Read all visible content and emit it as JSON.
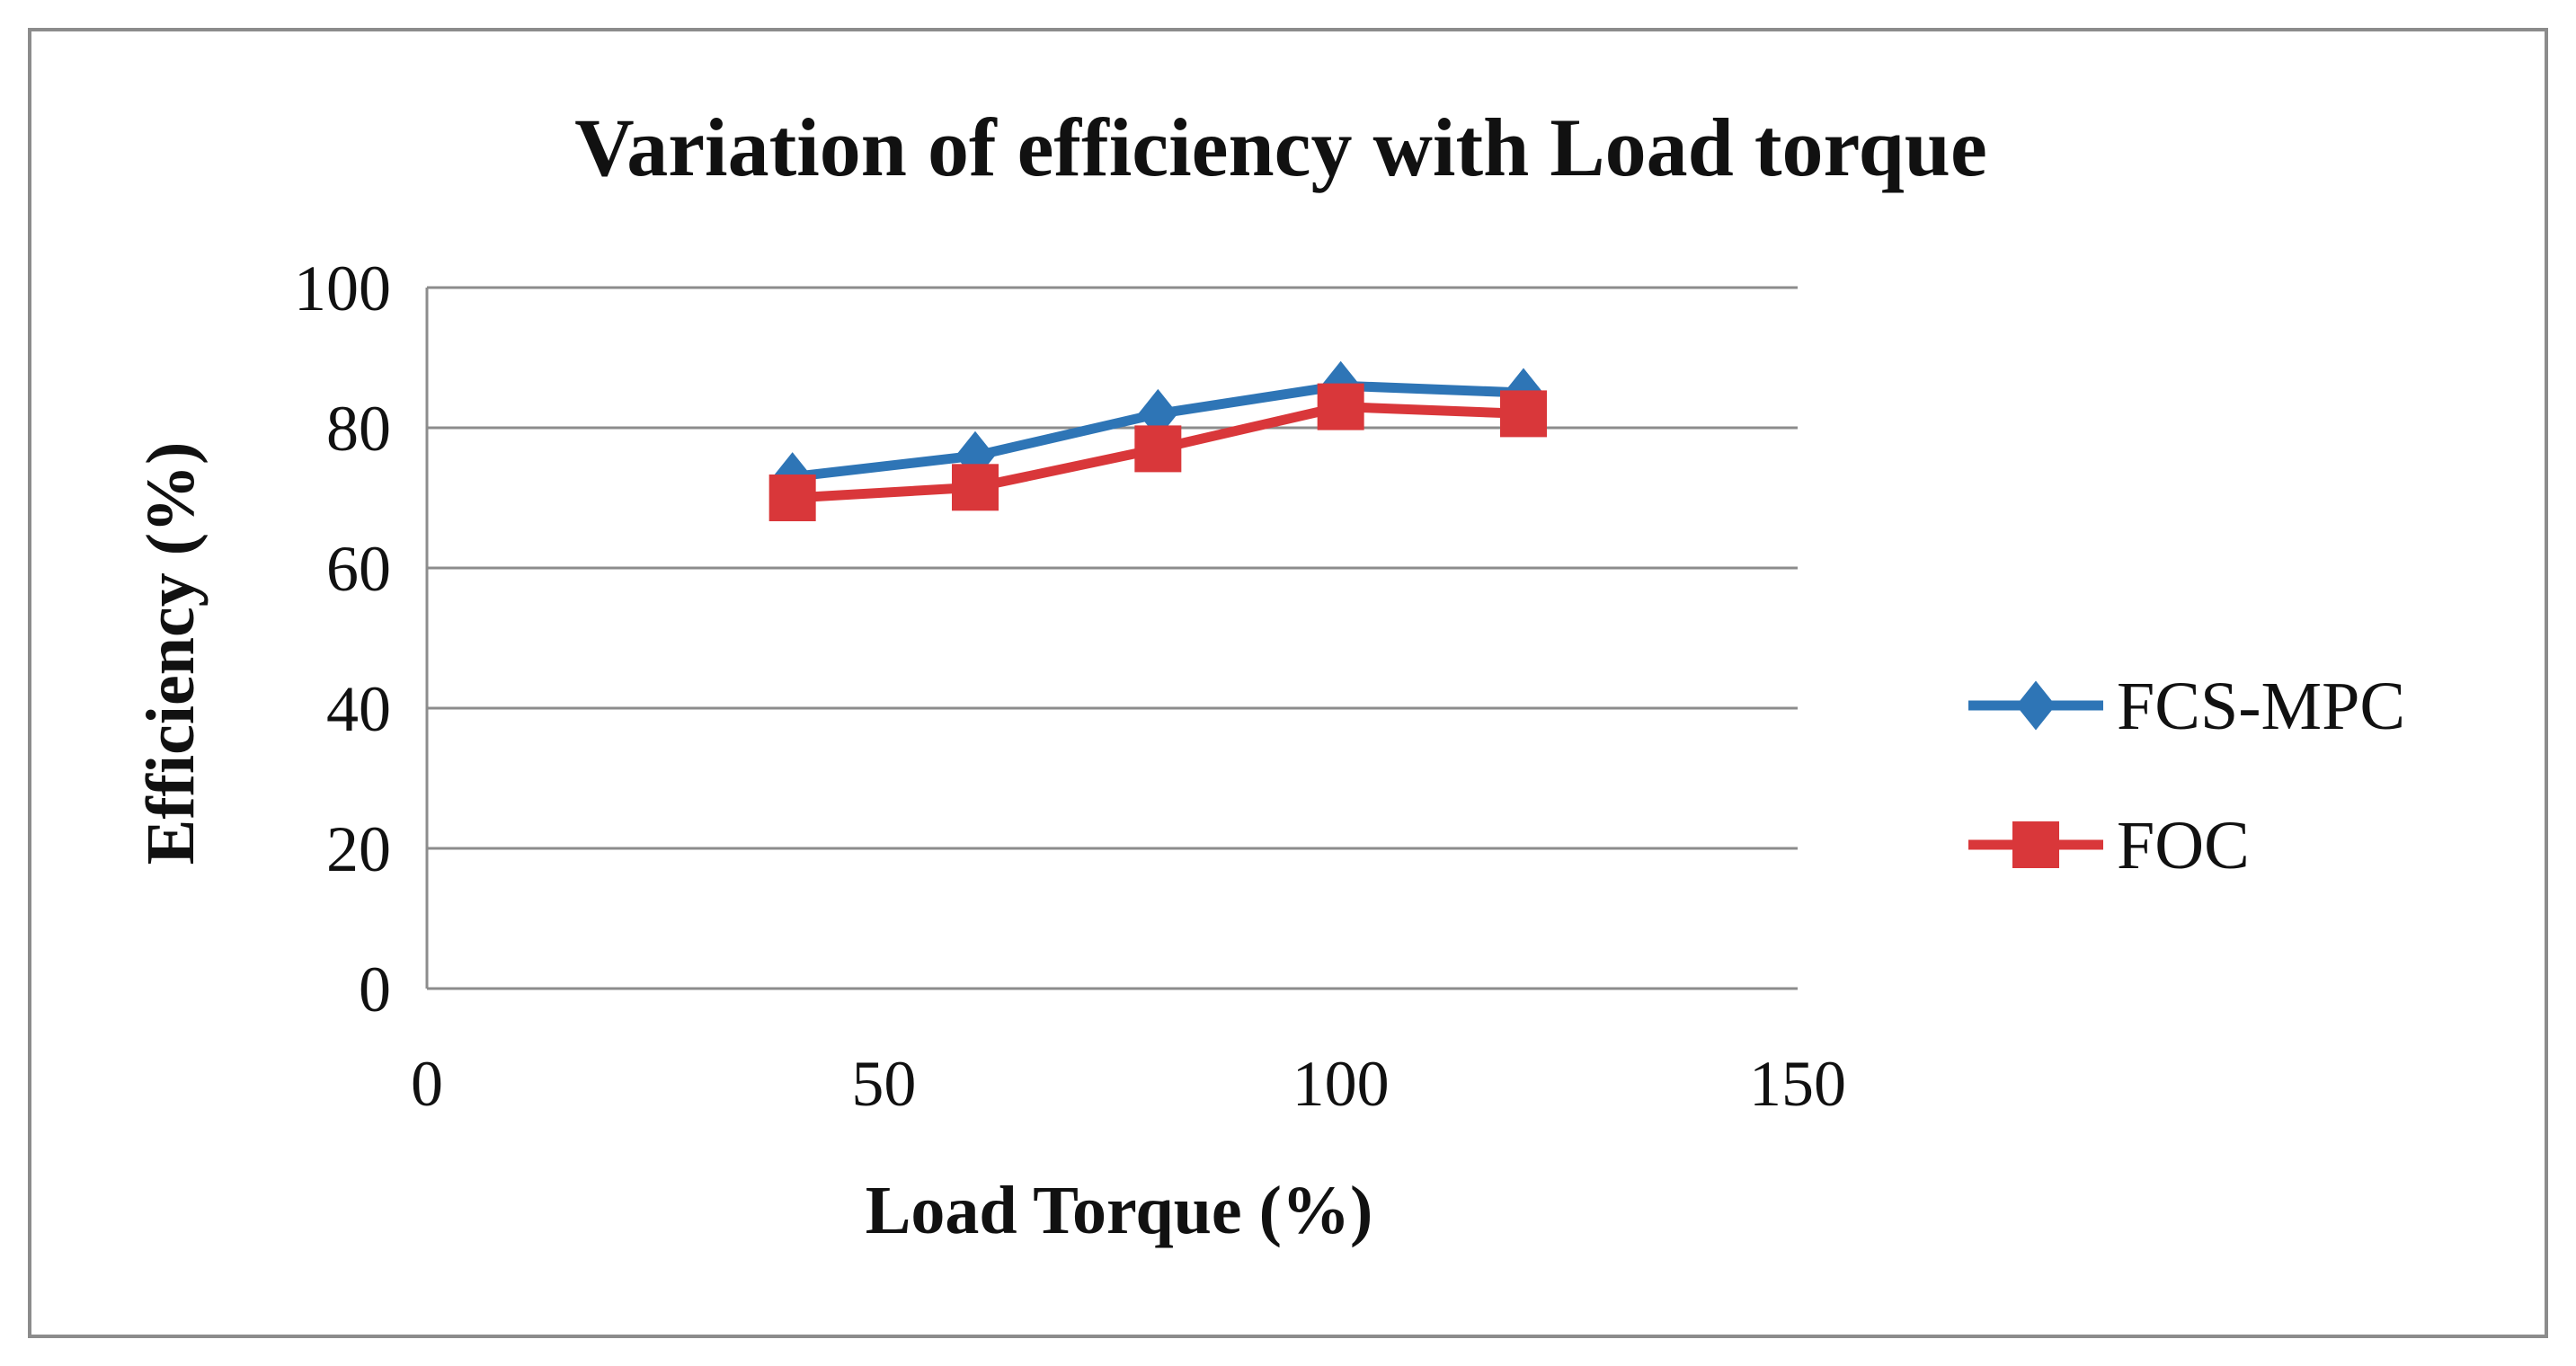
{
  "chart_data": {
    "type": "line",
    "title": "Variation of efficiency with Load torque",
    "xlabel": "Load Torque (%)",
    "ylabel": "Efficiency (%)",
    "xlim": [
      0,
      150
    ],
    "ylim": [
      0,
      100
    ],
    "x_ticks": [
      0,
      50,
      100,
      150
    ],
    "y_ticks": [
      0,
      20,
      40,
      60,
      80,
      100
    ],
    "x_tick_labels": [
      "0",
      "50",
      "100",
      "150"
    ],
    "y_tick_labels": [
      "0",
      "20",
      "40",
      "60",
      "80",
      "100"
    ],
    "grid": "horizontal",
    "legend_position": "right",
    "series": [
      {
        "name": "FCS-MPC",
        "marker": "diamond",
        "color": "#2e75b6",
        "x": [
          40,
          60,
          80,
          100,
          120
        ],
        "values": [
          73,
          76,
          82,
          86,
          85
        ]
      },
      {
        "name": "FOC",
        "marker": "square",
        "color": "#d9373a",
        "x": [
          40,
          60,
          80,
          100,
          120
        ],
        "values": [
          70,
          71.5,
          77,
          83,
          82
        ]
      }
    ]
  }
}
